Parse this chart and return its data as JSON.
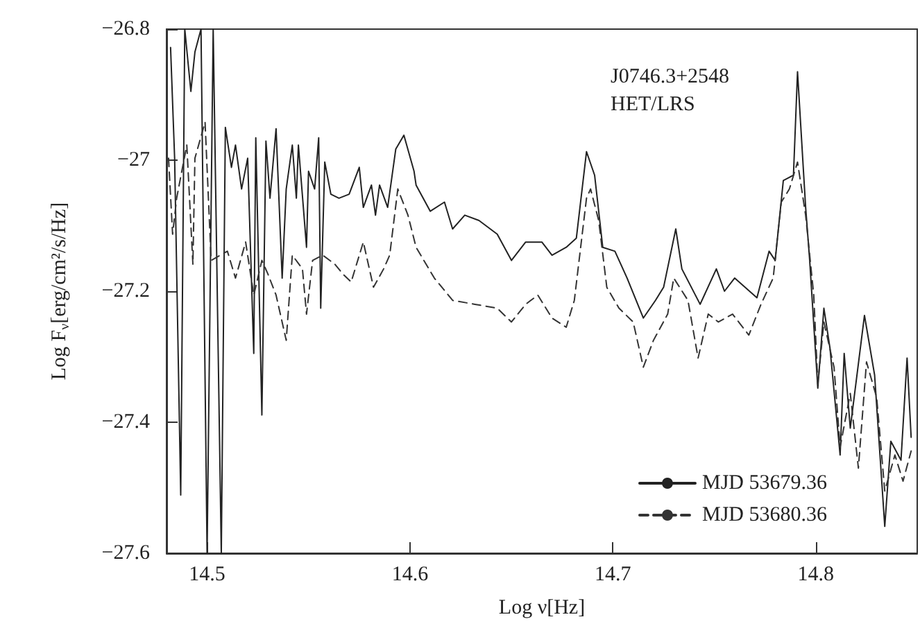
{
  "chart_data": {
    "type": "line",
    "xlabel": "Log ν[Hz]",
    "ylabel": "Log F$_{ν}$[erg/cm²/s/Hz]",
    "annotations": [
      "J0746.3+2548",
      "HET/LRS"
    ],
    "xlim": [
      14.48,
      14.85
    ],
    "xticks": [
      14.5,
      14.6,
      14.7,
      14.8
    ],
    "ylim": [
      -27.6,
      -26.8
    ],
    "yticks": [
      -27.6,
      -27.4,
      -27.2,
      -27,
      -26.8
    ],
    "legend": "bottom right",
    "grid": false,
    "marker": "none",
    "series": [
      {
        "name": "MJD 53679.36",
        "color": "#222222",
        "line_style": "solid",
        "x": [
          14.482,
          14.484,
          14.487,
          14.489,
          14.492,
          14.494,
          14.497,
          14.5,
          14.503,
          14.507,
          14.509,
          14.512,
          14.514,
          14.517,
          14.52,
          14.523,
          14.524,
          14.527,
          14.529,
          14.531,
          14.534,
          14.537,
          14.539,
          14.542,
          14.544,
          14.545,
          14.549,
          14.55,
          14.553,
          14.555,
          14.556,
          14.558,
          14.561,
          14.565,
          14.57,
          14.575,
          14.577,
          14.581,
          14.583,
          14.585,
          14.589,
          14.593,
          14.597,
          14.602,
          14.603,
          14.61,
          14.617,
          14.621,
          14.627,
          14.634,
          14.643,
          14.65,
          14.657,
          14.665,
          14.67,
          14.677,
          14.682,
          14.687,
          14.691,
          14.695,
          14.701,
          14.707,
          14.715,
          14.721,
          14.725,
          14.731,
          14.734,
          14.743,
          14.751,
          14.755,
          14.76,
          14.771,
          14.777,
          14.78,
          14.784,
          14.789,
          14.791,
          14.795,
          14.797,
          14.801,
          14.804,
          14.807,
          14.812,
          14.814,
          14.817,
          14.824,
          14.829,
          14.834,
          14.837,
          14.842,
          14.845,
          14.847
        ],
        "values": [
          -26.828,
          -26.997,
          -27.511,
          -26.8,
          -26.895,
          -26.835,
          -26.8,
          -27.6,
          -26.8,
          -27.6,
          -26.95,
          -27.011,
          -26.977,
          -27.044,
          -26.997,
          -27.295,
          -26.966,
          -27.389,
          -26.971,
          -27.058,
          -26.952,
          -27.18,
          -27.044,
          -26.977,
          -27.058,
          -26.977,
          -27.133,
          -27.017,
          -27.044,
          -26.966,
          -27.226,
          -27.003,
          -27.052,
          -27.058,
          -27.052,
          -27.011,
          -27.072,
          -27.038,
          -27.084,
          -27.038,
          -27.072,
          -26.983,
          -26.962,
          -27.017,
          -27.038,
          -27.078,
          -27.064,
          -27.105,
          -27.084,
          -27.092,
          -27.113,
          -27.153,
          -27.125,
          -27.125,
          -27.145,
          -27.133,
          -27.119,
          -26.987,
          -27.023,
          -27.133,
          -27.139,
          -27.18,
          -27.241,
          -27.214,
          -27.194,
          -27.105,
          -27.166,
          -27.22,
          -27.166,
          -27.2,
          -27.18,
          -27.21,
          -27.139,
          -27.153,
          -27.031,
          -27.023,
          -26.865,
          -27.072,
          -27.153,
          -27.348,
          -27.226,
          -27.287,
          -27.45,
          -27.295,
          -27.409,
          -27.237,
          -27.328,
          -27.559,
          -27.429,
          -27.458,
          -27.302,
          -27.423
        ]
      },
      {
        "name": "MJD 53680.36",
        "color": "#333333",
        "line_style": "dashed",
        "x": [
          14.481,
          14.483,
          14.485,
          14.49,
          14.493,
          14.494,
          14.499,
          14.502,
          14.51,
          14.514,
          14.519,
          14.523,
          14.527,
          14.53,
          14.534,
          14.539,
          14.542,
          14.547,
          14.549,
          14.552,
          14.557,
          14.563,
          14.567,
          14.571,
          14.577,
          14.582,
          14.587,
          14.59,
          14.594,
          14.599,
          14.603,
          14.612,
          14.621,
          14.632,
          14.643,
          14.65,
          14.657,
          14.663,
          14.67,
          14.677,
          14.681,
          14.687,
          14.689,
          14.693,
          14.697,
          14.703,
          14.71,
          14.715,
          14.72,
          14.727,
          14.73,
          14.737,
          14.742,
          14.747,
          14.752,
          14.759,
          14.767,
          14.773,
          14.779,
          14.783,
          14.787,
          14.791,
          14.795,
          14.799,
          14.801,
          14.804,
          14.809,
          14.812,
          14.817,
          14.821,
          14.825,
          14.83,
          14.834,
          14.839,
          14.843,
          14.847
        ],
        "values": [
          -26.997,
          -27.113,
          -27.058,
          -26.977,
          -27.159,
          -26.997,
          -26.942,
          -27.153,
          -27.139,
          -27.18,
          -27.125,
          -27.206,
          -27.153,
          -27.174,
          -27.206,
          -27.275,
          -27.145,
          -27.166,
          -27.235,
          -27.153,
          -27.145,
          -27.159,
          -27.174,
          -27.186,
          -27.125,
          -27.194,
          -27.166,
          -27.145,
          -27.044,
          -27.084,
          -27.133,
          -27.18,
          -27.214,
          -27.22,
          -27.226,
          -27.247,
          -27.22,
          -27.206,
          -27.241,
          -27.255,
          -27.214,
          -27.058,
          -27.044,
          -27.092,
          -27.194,
          -27.226,
          -27.247,
          -27.316,
          -27.275,
          -27.235,
          -27.18,
          -27.214,
          -27.302,
          -27.235,
          -27.247,
          -27.235,
          -27.267,
          -27.22,
          -27.18,
          -27.064,
          -27.044,
          -27.003,
          -27.084,
          -27.206,
          -27.342,
          -27.247,
          -27.316,
          -27.438,
          -27.356,
          -27.47,
          -27.308,
          -27.362,
          -27.505,
          -27.45,
          -27.49,
          -27.444
        ]
      }
    ]
  }
}
